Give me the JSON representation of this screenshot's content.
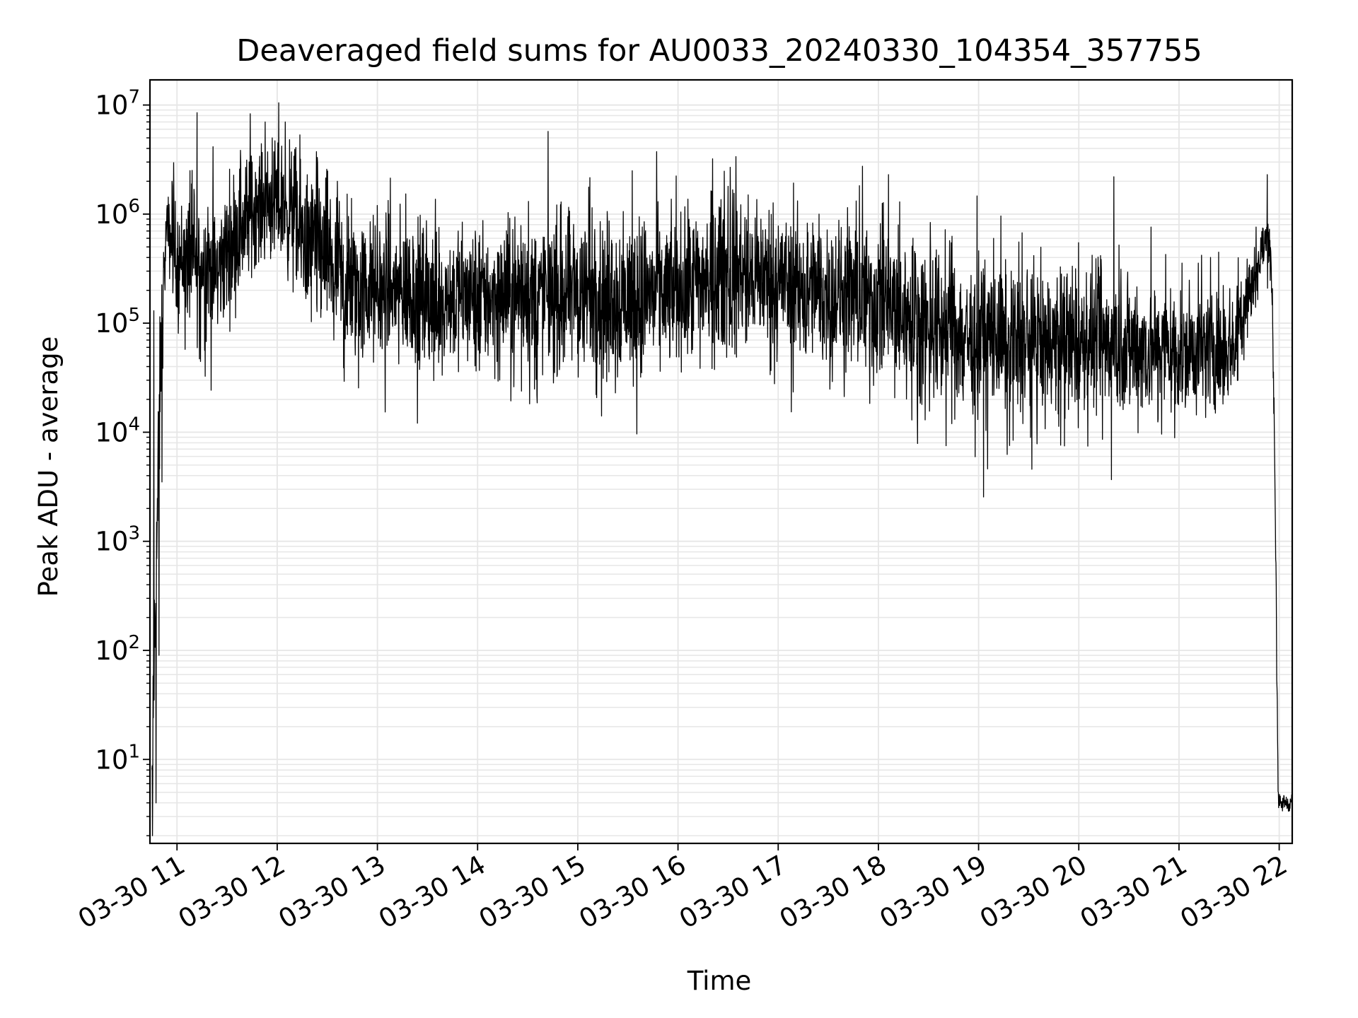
{
  "chart_data": {
    "type": "line",
    "title": "Deaveraged field sums for AU0033_20240330_104354_357755",
    "xlabel": "Time",
    "ylabel": "Peak ADU - average",
    "yscale": "log",
    "xlim_hours": [
      10.73,
      22.13
    ],
    "ylim": [
      1.7,
      17000000
    ],
    "x_ticks": [
      {
        "label": "03-30 11",
        "hour": 11
      },
      {
        "label": "03-30 12",
        "hour": 12
      },
      {
        "label": "03-30 13",
        "hour": 13
      },
      {
        "label": "03-30 14",
        "hour": 14
      },
      {
        "label": "03-30 15",
        "hour": 15
      },
      {
        "label": "03-30 16",
        "hour": 16
      },
      {
        "label": "03-30 17",
        "hour": 17
      },
      {
        "label": "03-30 18",
        "hour": 18
      },
      {
        "label": "03-30 19",
        "hour": 19
      },
      {
        "label": "03-30 20",
        "hour": 20
      },
      {
        "label": "03-30 21",
        "hour": 21
      },
      {
        "label": "03-30 22",
        "hour": 22
      }
    ],
    "y_ticks": [
      {
        "base": "10",
        "exp": "1",
        "value": 10
      },
      {
        "base": "10",
        "exp": "2",
        "value": 100
      },
      {
        "base": "10",
        "exp": "3",
        "value": 1000
      },
      {
        "base": "10",
        "exp": "4",
        "value": 10000
      },
      {
        "base": "10",
        "exp": "5",
        "value": 100000
      },
      {
        "base": "10",
        "exp": "6",
        "value": 1000000
      },
      {
        "base": "10",
        "exp": "7",
        "value": 10000000
      }
    ],
    "grid": true,
    "line_color": "#000000",
    "grid_color": "#e6e6e6",
    "series": [
      {
        "envelope": {
          "hours": [
            10.75,
            10.8,
            10.84,
            10.88,
            10.9,
            11.0,
            11.2,
            11.4,
            11.6,
            11.8,
            12.0,
            12.15,
            12.3,
            12.5,
            12.7,
            13.0,
            13.5,
            14.0,
            14.5,
            15.0,
            15.5,
            16.0,
            16.5,
            17.0,
            17.5,
            17.9,
            18.2,
            18.5,
            19.0,
            19.5,
            20.0,
            20.5,
            21.0,
            21.3,
            21.55,
            21.7,
            21.85,
            21.9,
            21.93,
            21.96,
            21.99,
            22.13
          ],
          "median": [
            5,
            1200,
            60000,
            400000,
            700000,
            400000,
            350000,
            300000,
            700000,
            1200000,
            1300000,
            1000000,
            500000,
            400000,
            200000,
            200000,
            180000,
            170000,
            180000,
            190000,
            170000,
            200000,
            280000,
            250000,
            180000,
            170000,
            120000,
            100000,
            70000,
            65000,
            70000,
            60000,
            55000,
            55000,
            65000,
            200000,
            500000,
            700000,
            200000,
            3000,
            4,
            4
          ],
          "spread": [
            0.3,
            0.5,
            0.4,
            0.22,
            0.2,
            0.3,
            0.4,
            0.35,
            0.4,
            0.3,
            0.3,
            0.4,
            0.45,
            0.45,
            0.42,
            0.4,
            0.4,
            0.4,
            0.4,
            0.45,
            0.45,
            0.4,
            0.45,
            0.4,
            0.4,
            0.45,
            0.45,
            0.45,
            0.42,
            0.42,
            0.4,
            0.4,
            0.35,
            0.35,
            0.3,
            0.2,
            0.15,
            0.15,
            0.15,
            0.2,
            0.05,
            0.05
          ]
        },
        "spikes": [
          {
            "hour": 10.95,
            "value": 2000000
          },
          {
            "hour": 11.2,
            "value": 8500000
          },
          {
            "hour": 11.13,
            "value": 2500000
          },
          {
            "hour": 11.75,
            "value": 3000000
          },
          {
            "hour": 11.88,
            "value": 7000000
          },
          {
            "hour": 11.95,
            "value": 5000000
          },
          {
            "hour": 12.08,
            "value": 7000000
          },
          {
            "hour": 12.2,
            "value": 2000000
          },
          {
            "hour": 12.4,
            "value": 3300000
          },
          {
            "hour": 12.6,
            "value": 2000000
          },
          {
            "hour": 13.0,
            "value": 1200000
          },
          {
            "hour": 14.3,
            "value": 650000
          },
          {
            "hour": 15.8,
            "value": 1300000
          },
          {
            "hour": 16.5,
            "value": 1800000
          },
          {
            "hour": 16.7,
            "value": 1500000
          },
          {
            "hour": 18.1,
            "value": 2300000
          },
          {
            "hour": 19.15,
            "value": 600000
          },
          {
            "hour": 20.35,
            "value": 2200000
          },
          {
            "hour": 21.88,
            "value": 2300000
          }
        ]
      }
    ]
  }
}
